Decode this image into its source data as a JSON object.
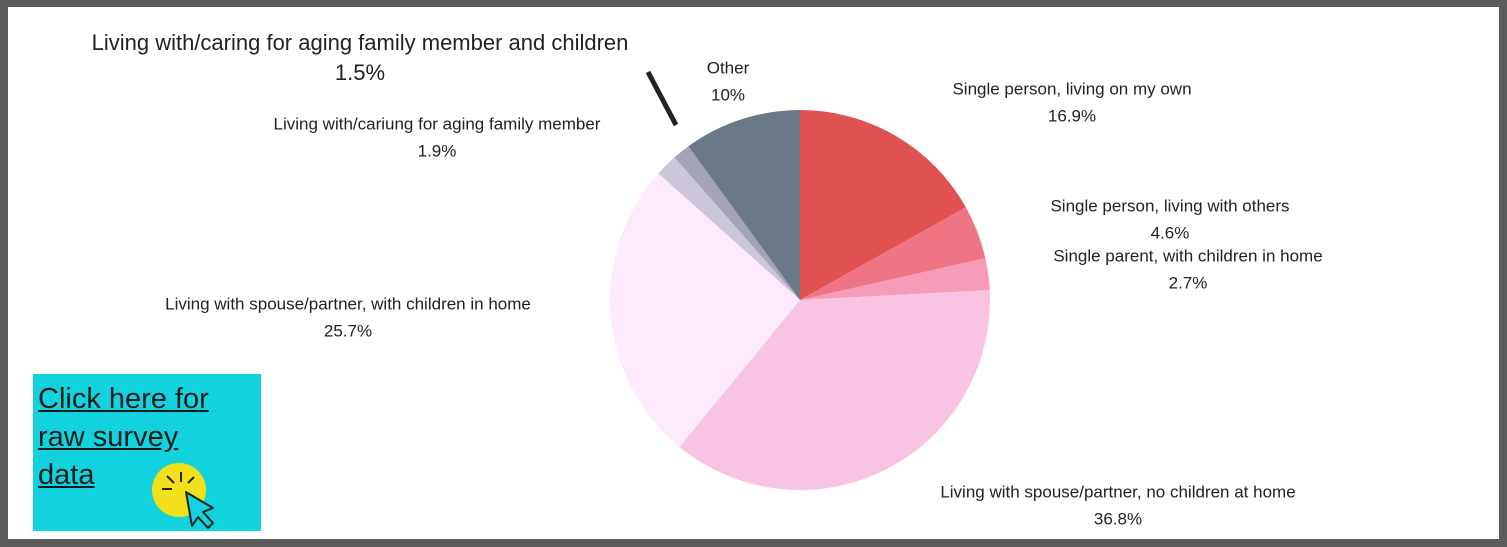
{
  "chart_data": {
    "type": "pie",
    "categories": [
      "Single person, living on my own",
      "Single person, living with others",
      "Single parent, with children in home",
      "Living with spouse/partner, no children at home",
      "Living with spouse/partner, with children in home",
      "Living with/cariung for aging family member",
      "Living with/caring for aging family member and children",
      "Other"
    ],
    "values": [
      16.9,
      4.6,
      2.7,
      36.8,
      25.7,
      1.9,
      1.5,
      10
    ],
    "value_labels": [
      "16.9%",
      "4.6%",
      "2.7%",
      "36.8%",
      "25.7%",
      "1.9%",
      "1.5%",
      "10%"
    ],
    "colors": [
      "#e05252",
      "#ef7585",
      "#f79cb8",
      "#f9c4e4",
      "#fdeafb",
      "#cbc6d9",
      "#a4a4b6",
      "#6a7888"
    ]
  },
  "link": {
    "text": "Click here for raw survey data"
  }
}
